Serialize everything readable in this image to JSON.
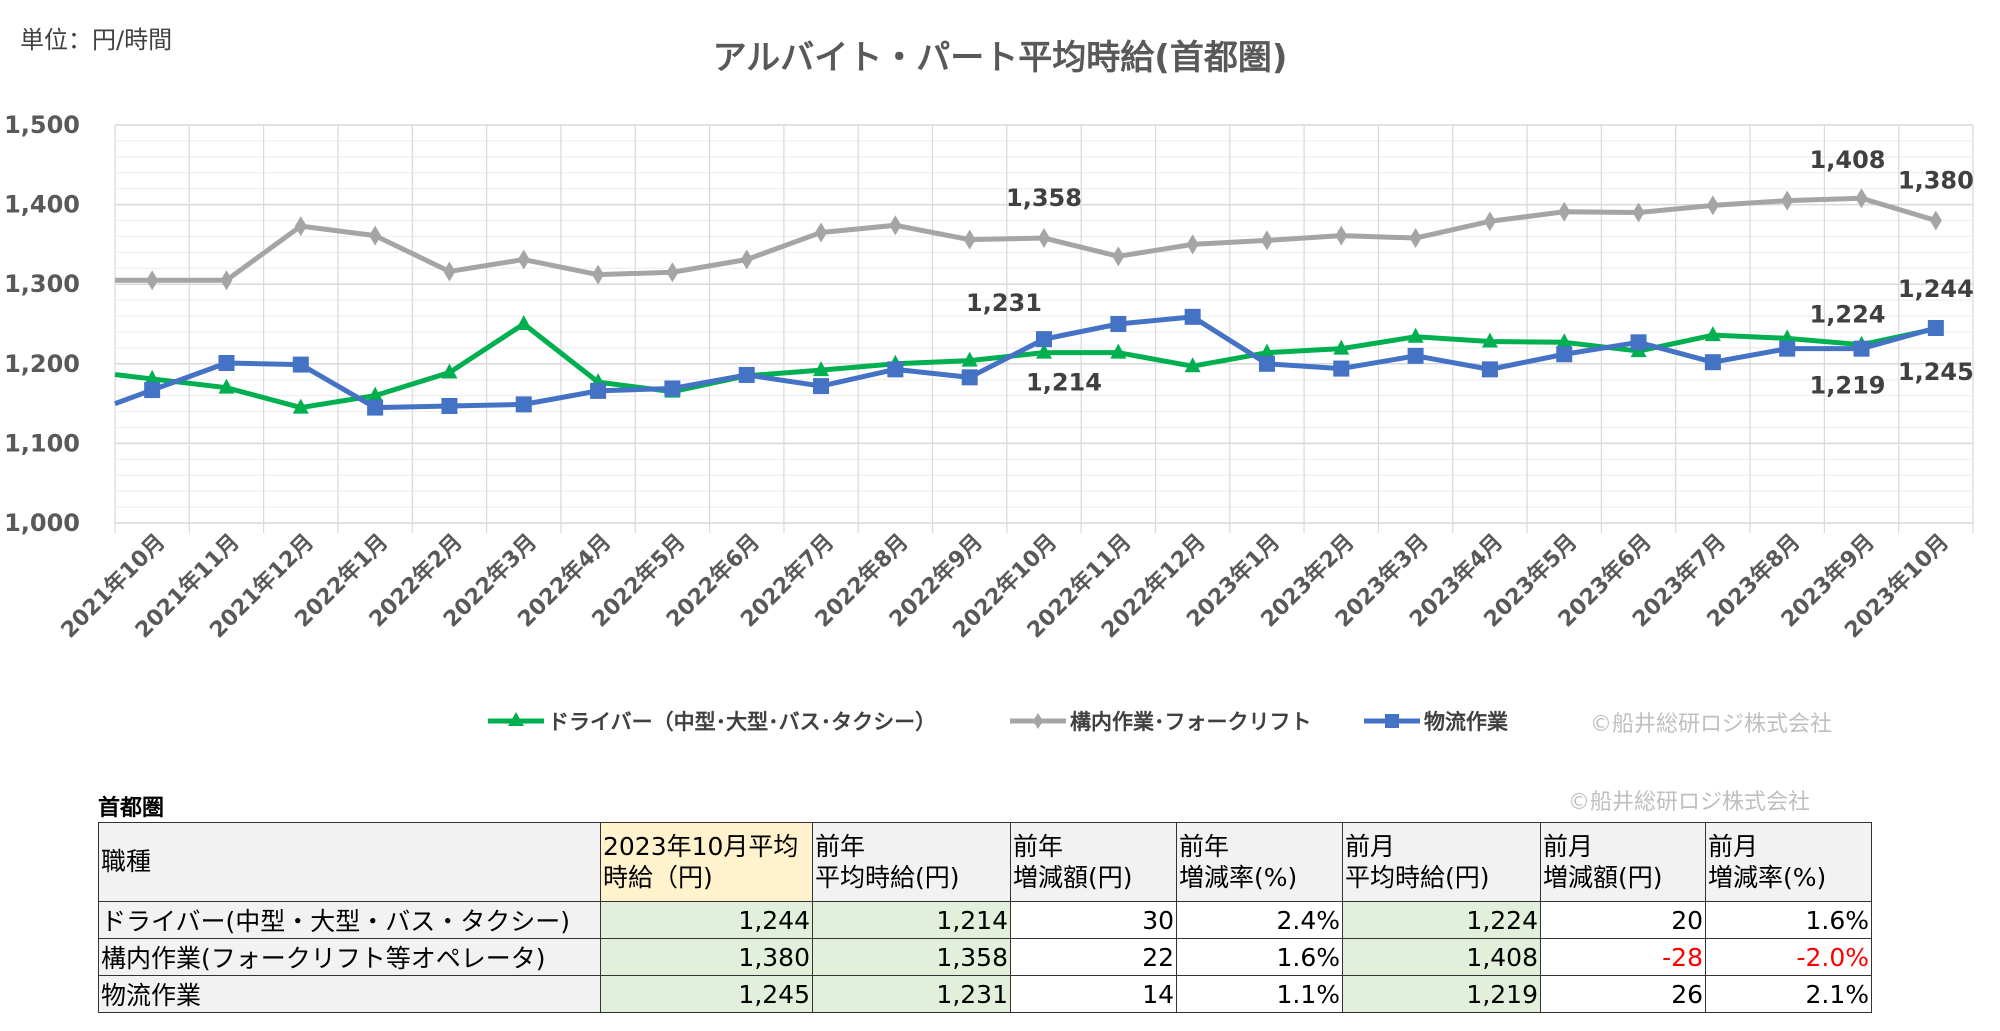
{
  "unit_label": "単位：円/時間",
  "copyright": "©船井総研ロジ株式会社",
  "chart_data": {
    "type": "line",
    "title": "アルバイト・パート平均時給(首都圏)",
    "xlabel": "",
    "ylabel": "",
    "ylim": [
      1000,
      1500
    ],
    "yticks": [
      1000,
      1100,
      1200,
      1300,
      1400,
      1500
    ],
    "ytick_labels": [
      "1,000",
      "1,100",
      "1,200",
      "1,300",
      "1,400",
      "1,500"
    ],
    "grid": true,
    "legend_position": "bottom",
    "categories": [
      "2021年10月",
      "2021年11月",
      "2021年12月",
      "2022年1月",
      "2022年2月",
      "2022年3月",
      "2022年4月",
      "2022年5月",
      "2022年6月",
      "2022年7月",
      "2022年8月",
      "2022年9月",
      "2022年10月",
      "2022年11月",
      "2022年12月",
      "2023年1月",
      "2023年2月",
      "2023年3月",
      "2023年4月",
      "2023年5月",
      "2023年6月",
      "2023年7月",
      "2023年8月",
      "2023年9月",
      "2023年10月"
    ],
    "series": [
      {
        "name": "ドライバー（中型･大型･バス･タクシー）",
        "color": "#00b050",
        "marker": "triangle",
        "values": [
          1181,
          1170,
          1145,
          1160,
          1189,
          1250,
          1177,
          1165,
          1185,
          1192,
          1200,
          1204,
          1214,
          1214,
          1197,
          1214,
          1219,
          1234,
          1228,
          1227,
          1216,
          1236,
          1232,
          1224,
          1244
        ],
        "labels": [
          {
            "index": 12,
            "text": "1,214",
            "pos": "below"
          },
          {
            "index": 23,
            "text": "1,224",
            "pos": "above"
          },
          {
            "index": 24,
            "text": "1,244",
            "pos": "above"
          }
        ]
      },
      {
        "name": "構内作業･フォークリフト",
        "color": "#a5a5a5",
        "marker": "diamond",
        "values": [
          1305,
          1305,
          1373,
          1361,
          1316,
          1331,
          1312,
          1315,
          1331,
          1365,
          1374,
          1356,
          1358,
          1335,
          1350,
          1355,
          1361,
          1358,
          1379,
          1391,
          1390,
          1399,
          1405,
          1408,
          1380
        ],
        "labels": [
          {
            "index": 12,
            "text": "1,358",
            "pos": "above"
          },
          {
            "index": 23,
            "text": "1,408",
            "pos": "above"
          },
          {
            "index": 24,
            "text": "1,380",
            "pos": "above"
          }
        ]
      },
      {
        "name": "物流作業",
        "color": "#4472c4",
        "marker": "square",
        "values": [
          1167,
          1201,
          1199,
          1145,
          1147,
          1149,
          1166,
          1169,
          1186,
          1172,
          1193,
          1183,
          1231,
          1250,
          1259,
          1200,
          1194,
          1210,
          1193,
          1212,
          1227,
          1202,
          1219,
          1219,
          1245
        ],
        "labels": [
          {
            "index": 12,
            "text": "1,231",
            "pos": "above"
          },
          {
            "index": 23,
            "text": "1,219",
            "pos": "below"
          },
          {
            "index": 24,
            "text": "1,245",
            "pos": "below"
          }
        ]
      }
    ]
  },
  "table": {
    "region": "首都圏",
    "headers": [
      "職種",
      "2023年10月平均\n時給（円)",
      "前年\n平均時給(円)",
      "前年\n増減額(円)",
      "前年\n増減率(%)",
      "前月\n平均時給(円)",
      "前月\n増減額(円)",
      "前月\n増減率(%)"
    ],
    "rows": [
      [
        "ドライバー(中型・大型・バス・タクシー)",
        "1,244",
        "1,214",
        "30",
        "2.4%",
        "1,224",
        "20",
        "1.6%"
      ],
      [
        "構内作業(フォークリフト等オペレータ)",
        "1,380",
        "1,358",
        "22",
        "1.6%",
        "1,408",
        "-28",
        "-2.0%"
      ],
      [
        "物流作業",
        "1,245",
        "1,231",
        "14",
        "1.1%",
        "1,219",
        "26",
        "2.1%"
      ]
    ]
  }
}
